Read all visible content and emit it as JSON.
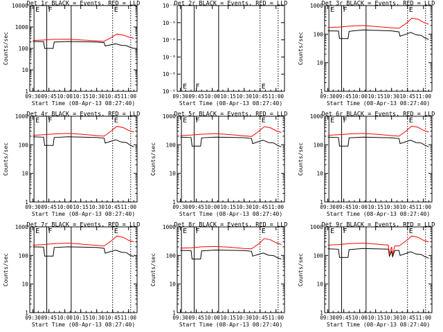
{
  "figure": {
    "background": "#ffffff",
    "axis_color": "#000000"
  },
  "chart_data": [
    {
      "type": "line",
      "title": "Det 1r BLACK = Events, RED = LLD",
      "xlabel": "Start Time (08-Apr-13 08:27:40)",
      "ylabel": "Counts/sec",
      "xticks": [
        "09:30",
        "09:45",
        "10:00",
        "10:15",
        "10:30",
        "10:45",
        "11:00"
      ],
      "yscale": "log",
      "ylim": [
        1,
        10000
      ],
      "yticks": [
        "1",
        "10",
        "100",
        "1000",
        "10000"
      ],
      "markers": [
        "E",
        "F",
        "E"
      ],
      "series": [
        {
          "name": "BLACK = Events",
          "color": "#000000",
          "x": [
            "09:30",
            "09:40",
            "09:41",
            "09:49",
            "09:50",
            "10:03",
            "10:30",
            "10:37",
            "10:38",
            "10:44",
            "10:48",
            "10:53",
            "10:58",
            "11:01",
            "11:05"
          ],
          "y": [
            210,
            205,
            100,
            100,
            200,
            210,
            200,
            185,
            130,
            150,
            165,
            140,
            135,
            115,
            100
          ]
        },
        {
          "name": "RED = LLD",
          "color": "#ff0000",
          "x": [
            "09:30",
            "09:40",
            "09:50",
            "10:03",
            "10:15",
            "10:30",
            "10:37",
            "10:44",
            "10:49",
            "10:55",
            "11:00",
            "11:05"
          ],
          "y": [
            235,
            245,
            265,
            270,
            250,
            225,
            215,
            330,
            470,
            420,
            340,
            300
          ]
        }
      ]
    },
    {
      "type": "line",
      "title": "Det 2r BLACK = Events, RED = LLD",
      "xlabel": "Start Time (08-Apr-13 08:27:40)",
      "ylabel": "",
      "xticks": [
        "09:30",
        "09:45",
        "10:00",
        "10:15",
        "10:30",
        "10:45",
        "11:00"
      ],
      "yscale": "log",
      "ylim": [
        1e-06,
        1e-05
      ],
      "yticks": [
        "10⁻⁶",
        "10⁻⁶",
        "10⁻⁶",
        "10⁻⁶",
        "10⁻⁶",
        "10⁻⁶"
      ],
      "markers": [
        "E",
        "F",
        "E"
      ],
      "series": []
    },
    {
      "type": "line",
      "title": "Det 3r BLACK = Events, RED = LLD",
      "xlabel": "Start Time (08-Apr-13 08:27:40)",
      "ylabel": "Counts/sec",
      "xticks": [
        "09:30",
        "09:45",
        "10:00",
        "10:15",
        "10:30",
        "10:45",
        "11:00"
      ],
      "yscale": "log",
      "ylim": [
        1,
        1000
      ],
      "yticks": [
        "1",
        "10",
        "100",
        "1000"
      ],
      "markers": [
        "E",
        "F",
        "E"
      ],
      "series": [
        {
          "name": "BLACK = Events",
          "color": "#000000",
          "x": [
            "09:30",
            "09:40",
            "09:41",
            "09:49",
            "09:50",
            "10:03",
            "10:30",
            "10:37",
            "10:38",
            "10:44",
            "10:48",
            "10:53",
            "10:58",
            "11:01",
            "11:05"
          ],
          "y": [
            130,
            128,
            70,
            70,
            125,
            140,
            130,
            120,
            85,
            100,
            115,
            95,
            90,
            75,
            65
          ]
        },
        {
          "name": "RED = LLD",
          "color": "#ff0000",
          "x": [
            "09:30",
            "09:40",
            "09:50",
            "10:03",
            "10:15",
            "10:30",
            "10:37",
            "10:44",
            "10:49",
            "10:55",
            "11:00",
            "11:05"
          ],
          "y": [
            170,
            175,
            190,
            200,
            185,
            165,
            160,
            240,
            360,
            330,
            260,
            220
          ]
        }
      ]
    },
    {
      "type": "line",
      "title": "Det 4r BLACK = Events, RED = LLD",
      "xlabel": "Start Time (08-Apr-13 08:27:40)",
      "ylabel": "Counts/sec",
      "xticks": [
        "09:30",
        "09:45",
        "10:00",
        "10:15",
        "10:30",
        "10:45",
        "11:00"
      ],
      "yscale": "log",
      "ylim": [
        1,
        1000
      ],
      "yticks": [
        "1",
        "10",
        "100",
        "1000"
      ],
      "markers": [
        "E",
        "F",
        "E"
      ],
      "series": [
        {
          "name": "BLACK = Events",
          "color": "#000000",
          "x": [
            "09:30",
            "09:40",
            "09:41",
            "09:49",
            "09:50",
            "10:03",
            "10:30",
            "10:37",
            "10:38",
            "10:44",
            "10:48",
            "10:53",
            "10:58",
            "11:01",
            "11:05"
          ],
          "y": [
            190,
            185,
            95,
            95,
            180,
            190,
            180,
            170,
            115,
            135,
            150,
            125,
            120,
            100,
            85
          ]
        },
        {
          "name": "RED = LLD",
          "color": "#ff0000",
          "x": [
            "09:30",
            "09:40",
            "09:50",
            "10:03",
            "10:15",
            "10:30",
            "10:37",
            "10:44",
            "10:49",
            "10:55",
            "11:00",
            "11:05"
          ],
          "y": [
            215,
            225,
            240,
            250,
            235,
            210,
            200,
            310,
            440,
            400,
            320,
            280
          ]
        }
      ]
    },
    {
      "type": "line",
      "title": "Det 5r BLACK = Events, RED = LLD",
      "xlabel": "Start Time (08-Apr-13 08:27:40)",
      "ylabel": "Counts/sec",
      "xticks": [
        "09:30",
        "09:45",
        "10:00",
        "10:15",
        "10:30",
        "10:45",
        "11:00"
      ],
      "yscale": "log",
      "ylim": [
        1,
        1000
      ],
      "yticks": [
        "1",
        "10",
        "100",
        "1000"
      ],
      "markers": [
        "E",
        "F",
        "E"
      ],
      "series": [
        {
          "name": "BLACK = Events",
          "color": "#000000",
          "x": [
            "09:30",
            "09:40",
            "09:41",
            "09:49",
            "09:50",
            "10:03",
            "10:30",
            "10:37",
            "10:38",
            "10:44",
            "10:48",
            "10:53",
            "10:58",
            "11:01",
            "11:05"
          ],
          "y": [
            185,
            180,
            90,
            90,
            175,
            185,
            178,
            165,
            110,
            130,
            145,
            120,
            115,
            98,
            85
          ]
        },
        {
          "name": "RED = LLD",
          "color": "#ff0000",
          "x": [
            "09:30",
            "09:40",
            "09:50",
            "10:03",
            "10:15",
            "10:30",
            "10:37",
            "10:44",
            "10:49",
            "10:55",
            "11:00",
            "11:05"
          ],
          "y": [
            210,
            220,
            235,
            245,
            230,
            205,
            195,
            300,
            430,
            390,
            310,
            270
          ]
        }
      ]
    },
    {
      "type": "line",
      "title": "Det 6r BLACK = Events, RED = LLD",
      "xlabel": "Start Time (08-Apr-13 08:27:40)",
      "ylabel": "Counts/sec",
      "xticks": [
        "09:30",
        "09:45",
        "10:00",
        "10:15",
        "10:30",
        "10:45",
        "11:00"
      ],
      "yscale": "log",
      "ylim": [
        1,
        1000
      ],
      "yticks": [
        "1",
        "10",
        "100",
        "1000"
      ],
      "markers": [
        "E",
        "F",
        "E"
      ],
      "series": [
        {
          "name": "BLACK = Events",
          "color": "#000000",
          "x": [
            "09:30",
            "09:40",
            "09:41",
            "09:49",
            "09:50",
            "10:03",
            "10:30",
            "10:37",
            "10:38",
            "10:44",
            "10:48",
            "10:53",
            "10:58",
            "11:01",
            "11:05"
          ],
          "y": [
            185,
            180,
            90,
            90,
            175,
            185,
            175,
            165,
            110,
            130,
            145,
            120,
            115,
            98,
            85
          ]
        },
        {
          "name": "RED = LLD",
          "color": "#ff0000",
          "x": [
            "09:30",
            "09:40",
            "09:50",
            "10:03",
            "10:15",
            "10:30",
            "10:37",
            "10:44",
            "10:49",
            "10:55",
            "11:00",
            "11:05"
          ],
          "y": [
            215,
            225,
            240,
            250,
            235,
            210,
            200,
            310,
            450,
            410,
            320,
            280
          ]
        }
      ]
    },
    {
      "type": "line",
      "title": "Det 7r BLACK = Events, RED = LLD",
      "xlabel": "Start Time (08-Apr-13 08:27:40)",
      "ylabel": "Counts/sec",
      "xticks": [
        "09:30",
        "09:45",
        "10:00",
        "10:15",
        "10:30",
        "10:45",
        "11:00"
      ],
      "yscale": "log",
      "ylim": [
        1,
        1000
      ],
      "yticks": [
        "1",
        "10",
        "100",
        "1000"
      ],
      "markers": [
        "E",
        "F",
        "E"
      ],
      "series": [
        {
          "name": "BLACK = Events",
          "color": "#000000",
          "x": [
            "09:30",
            "09:40",
            "09:41",
            "09:49",
            "09:50",
            "10:03",
            "10:30",
            "10:37",
            "10:38",
            "10:44",
            "10:48",
            "10:53",
            "10:58",
            "11:01",
            "11:05"
          ],
          "y": [
            200,
            195,
            95,
            95,
            190,
            200,
            190,
            178,
            120,
            140,
            155,
            130,
            125,
            105,
            90
          ]
        },
        {
          "name": "RED = LLD",
          "color": "#ff0000",
          "x": [
            "09:30",
            "09:40",
            "09:50",
            "10:03",
            "10:15",
            "10:30",
            "10:37",
            "10:44",
            "10:49",
            "10:55",
            "11:00",
            "11:05"
          ],
          "y": [
            230,
            240,
            260,
            270,
            250,
            225,
            215,
            330,
            480,
            430,
            340,
            300
          ]
        }
      ]
    },
    {
      "type": "line",
      "title": "Det 8r BLACK = Events, RED = LLD",
      "xlabel": "Start Time (08-Apr-13 08:27:40)",
      "ylabel": "Counts/sec",
      "xticks": [
        "09:30",
        "09:45",
        "10:00",
        "10:15",
        "10:30",
        "10:45",
        "11:00"
      ],
      "yscale": "log",
      "ylim": [
        1,
        1000
      ],
      "yticks": [
        "1",
        "10",
        "100",
        "1000"
      ],
      "markers": [
        "E",
        "F",
        "E"
      ],
      "series": [
        {
          "name": "BLACK = Events",
          "color": "#000000",
          "x": [
            "09:30",
            "09:40",
            "09:41",
            "09:49",
            "09:50",
            "10:03",
            "10:30",
            "10:37",
            "10:38",
            "10:44",
            "10:48",
            "10:53",
            "10:58",
            "11:01",
            "11:05"
          ],
          "y": [
            150,
            148,
            75,
            75,
            145,
            155,
            148,
            140,
            95,
            110,
            122,
            102,
            98,
            85,
            75
          ]
        },
        {
          "name": "RED = LLD",
          "color": "#ff0000",
          "x": [
            "09:30",
            "09:40",
            "09:50",
            "10:03",
            "10:15",
            "10:30",
            "10:37",
            "10:44",
            "10:49",
            "10:55",
            "11:00",
            "11:05"
          ],
          "y": [
            180,
            185,
            200,
            205,
            195,
            175,
            170,
            260,
            390,
            350,
            280,
            240
          ]
        }
      ]
    },
    {
      "type": "line",
      "title": "Det 9r BLACK = Events, RED = LLD",
      "xlabel": "Start Time (08-Apr-13 08:27:40)",
      "ylabel": "Counts/sec",
      "xticks": [
        "09:30",
        "09:45",
        "10:00",
        "10:15",
        "10:30",
        "10:45",
        "11:00"
      ],
      "yscale": "log",
      "ylim": [
        1,
        1000
      ],
      "yticks": [
        "1",
        "10",
        "100",
        "1000"
      ],
      "markers": [
        "E",
        "F",
        "E"
      ],
      "series": [
        {
          "name": "BLACK = Events",
          "color": "#000000",
          "x": [
            "09:30",
            "09:40",
            "09:41",
            "09:49",
            "09:50",
            "10:03",
            "10:27",
            "10:28",
            "10:30",
            "10:31",
            "10:33",
            "10:37",
            "10:38",
            "10:44",
            "10:48",
            "10:53",
            "10:58",
            "11:01",
            "11:05"
          ],
          "y": [
            170,
            165,
            85,
            85,
            160,
            175,
            165,
            95,
            140,
            90,
            150,
            150,
            100,
            120,
            135,
            112,
            108,
            92,
            80
          ]
        },
        {
          "name": "RED = LLD",
          "color": "#ff0000",
          "x": [
            "09:30",
            "09:40",
            "09:50",
            "10:03",
            "10:15",
            "10:27",
            "10:28",
            "10:30",
            "10:31",
            "10:33",
            "10:37",
            "10:44",
            "10:49",
            "10:55",
            "11:00",
            "11:05"
          ],
          "y": [
            230,
            240,
            260,
            270,
            250,
            230,
            110,
            200,
            105,
            215,
            215,
            330,
            480,
            430,
            340,
            300
          ]
        }
      ]
    }
  ]
}
